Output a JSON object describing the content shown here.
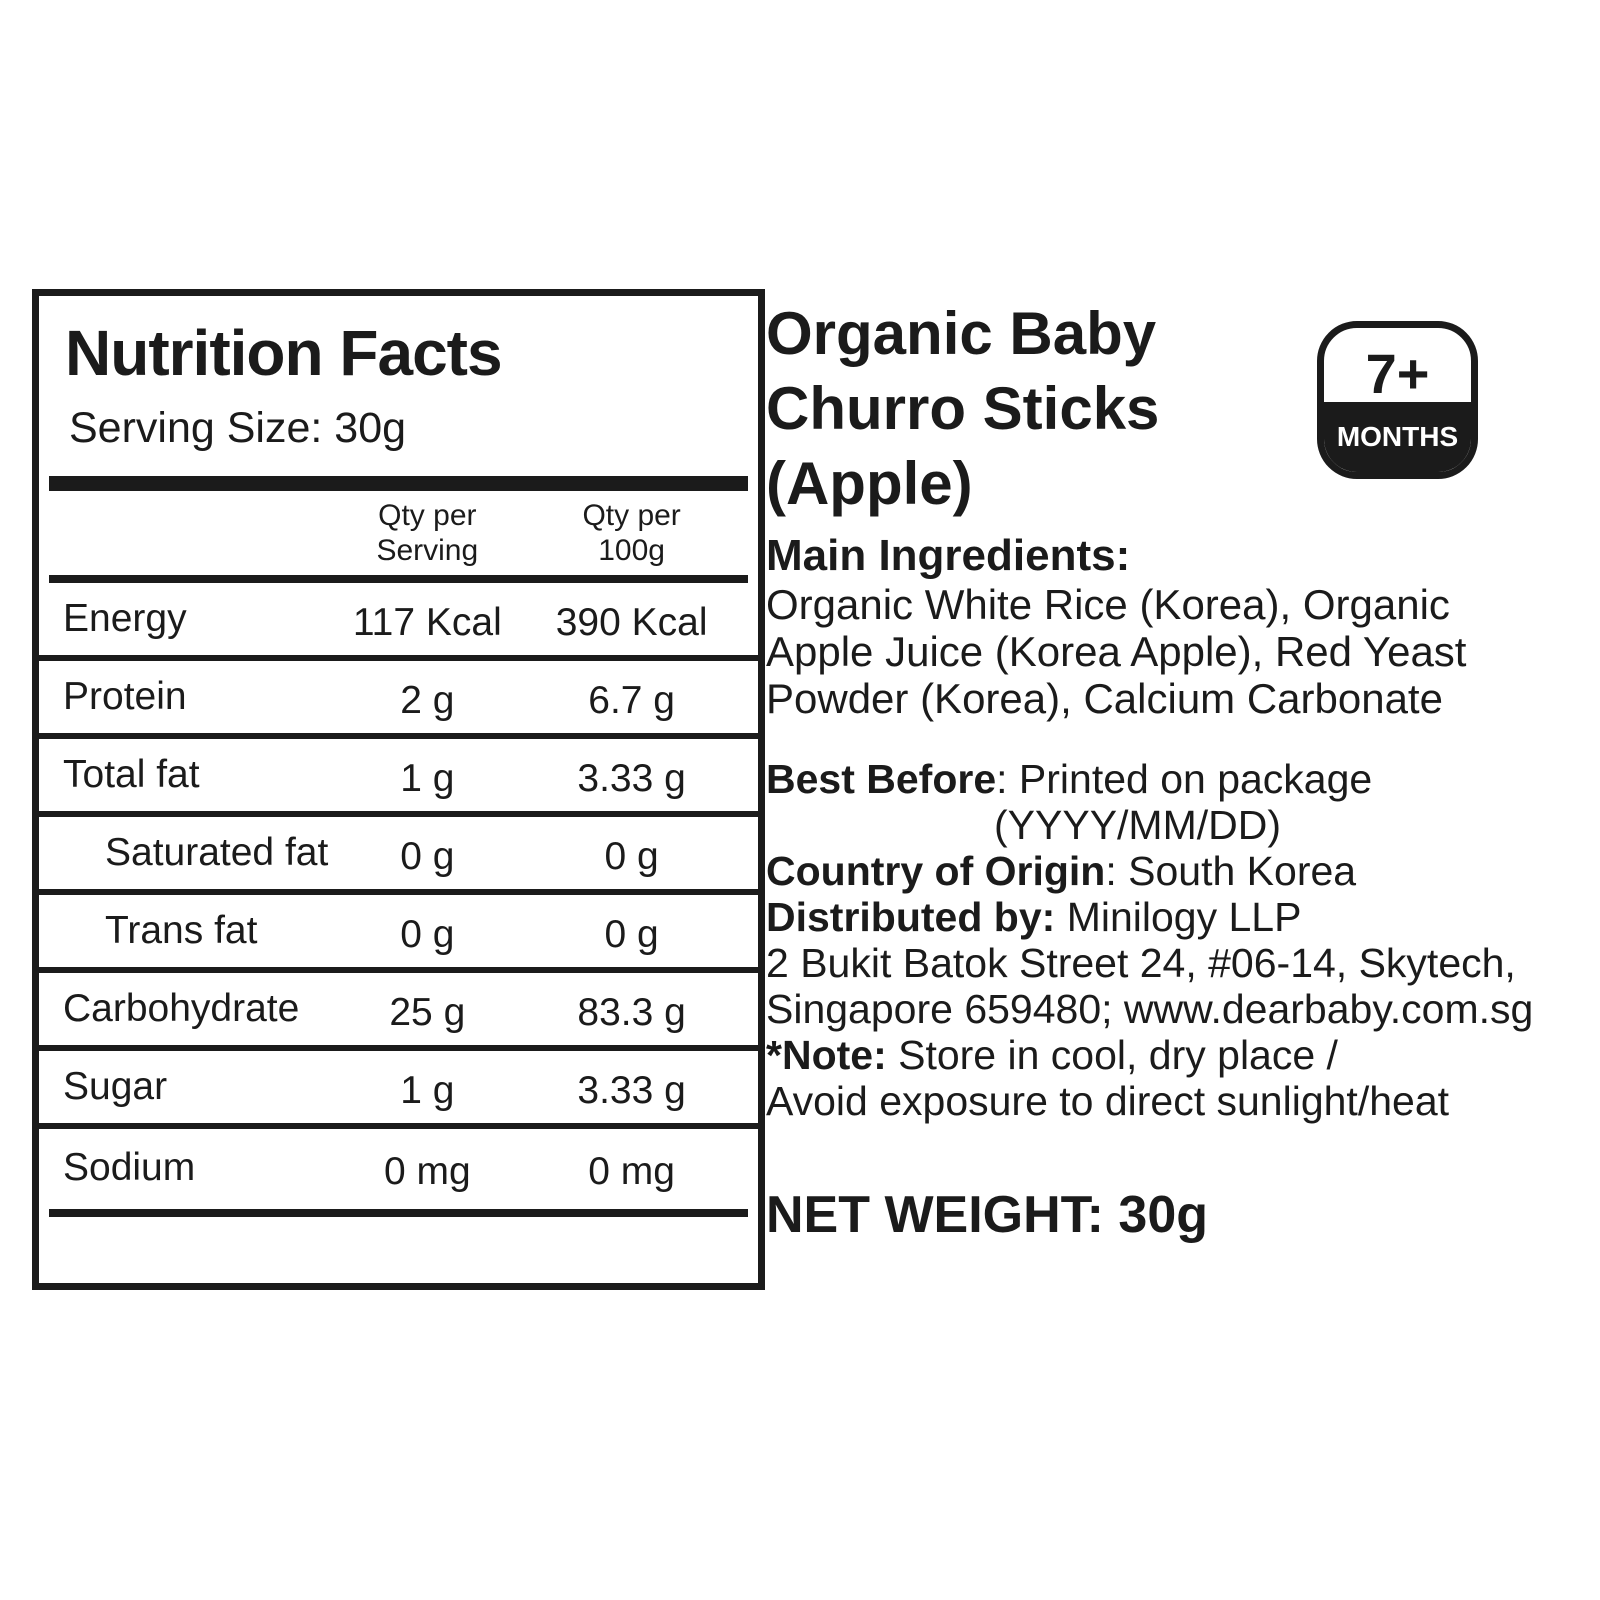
{
  "nutrition": {
    "title": "Nutrition Facts",
    "serving_size": "Serving Size: 30g",
    "col_headers": {
      "serving_line1": "Qty per",
      "serving_line2": "Serving",
      "per100_line1": "Qty per",
      "per100_line2": "100g"
    },
    "rows": [
      {
        "label": "Energy",
        "serving": "117 Kcal",
        "per100": "390 Kcal"
      },
      {
        "label": "Protein",
        "serving": "2 g",
        "per100": "6.7 g"
      },
      {
        "label": "Total fat",
        "serving": "1 g",
        "per100": "3.33 g"
      },
      {
        "label": "Saturated fat",
        "serving": "0 g",
        "per100": "0 g"
      },
      {
        "label": "Trans fat",
        "serving": "0 g",
        "per100": "0 g"
      },
      {
        "label": "Carbohydrate",
        "serving": "25 g",
        "per100": "83.3 g"
      },
      {
        "label": "Sugar",
        "serving": "1 g",
        "per100": "3.33 g"
      },
      {
        "label": "Sodium",
        "serving": "0 mg",
        "per100": "0 mg"
      }
    ]
  },
  "product": {
    "title": "Organic Baby Churro Sticks (Apple)",
    "age_badge": {
      "age": "7+",
      "unit": "MONTHS"
    },
    "ingredients_heading": "Main Ingredients:",
    "ingredients_lines": [
      "Organic White Rice (Korea), Organic",
      "Apple Juice (Korea Apple), Red Yeast",
      "Powder (Korea), Calcium Carbonate"
    ],
    "best_before_label": "Best Before",
    "best_before_value": ": Printed on package",
    "best_before_format": "(YYYY/MM/DD)",
    "origin_label": "Country of Origin",
    "origin_value": ": South Korea",
    "distributor_label": "Distributed by:",
    "distributor_value": " Minilogy LLP",
    "address_lines": [
      "2 Bukit Batok Street 24, #06-14, Skytech,",
      "Singapore 659480; www.dearbaby.com.sg"
    ],
    "note_label": "*Note:",
    "note_line1": " Store in cool, dry place /",
    "note_line2": "Avoid exposure to direct sunlight/heat",
    "net_weight": "NET WEIGHT: 30g"
  },
  "colors": {
    "ink": "#1b1b1b",
    "paper": "#ffffff"
  }
}
